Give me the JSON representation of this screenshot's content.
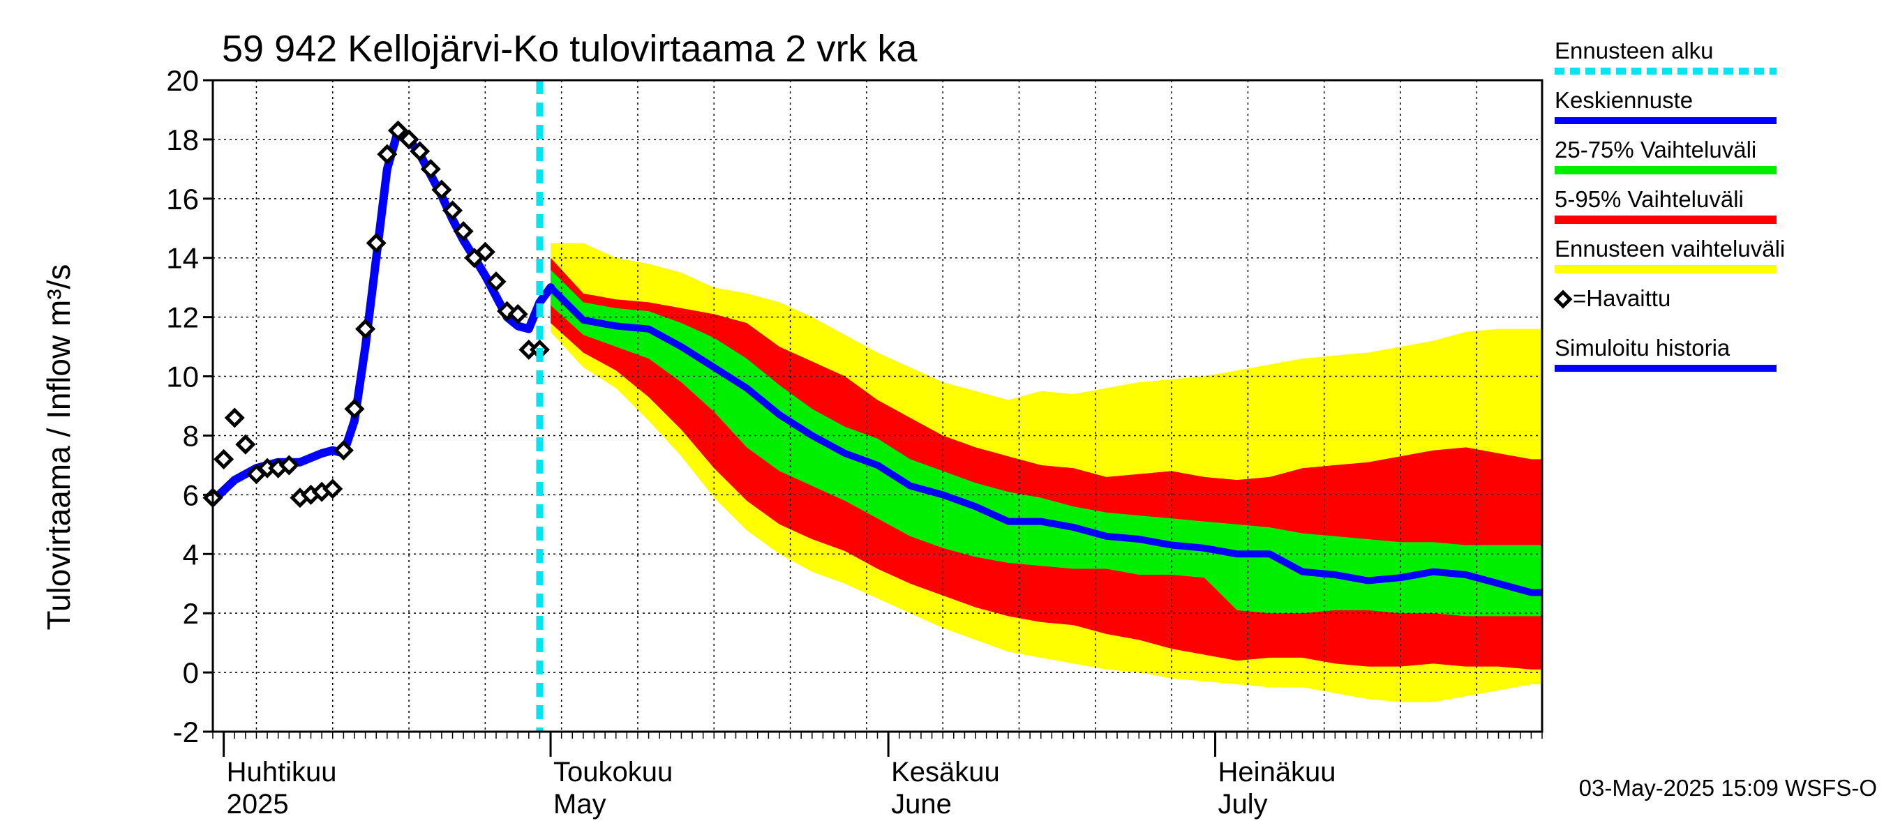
{
  "chart_data": {
    "type": "area",
    "title": "59 942 Kellojärvi-Ko tulovirtaama 2 vrk ka",
    "ylabel": "Tulovirtaama / Inflow   m³/s",
    "ylim": [
      -2,
      20
    ],
    "yticks": [
      -2,
      0,
      2,
      4,
      6,
      8,
      10,
      12,
      14,
      16,
      18,
      20
    ],
    "xlim": [
      "2025-03-31",
      "2025-07-31"
    ],
    "grid": true,
    "months": [
      {
        "top": "Huhtikuu",
        "bottom": "2025",
        "date": "2025-04-01"
      },
      {
        "top": "Toukokuu",
        "bottom": "May",
        "date": "2025-05-01"
      },
      {
        "top": "Kesäkuu",
        "bottom": "June",
        "date": "2025-06-01"
      },
      {
        "top": "Heinäkuu",
        "bottom": "July",
        "date": "2025-07-01"
      }
    ],
    "forecast_start": "2025-04-30",
    "colors": {
      "forecast_start": "#00e5ee",
      "median": "#0000ff",
      "iqr": "#00ee00",
      "p5_95": "#ff0000",
      "full_range": "#ffff00",
      "history": "#0000ff",
      "observed": "#000000"
    },
    "legend": [
      {
        "label": "Ennusteen alku",
        "key": "forecast_start",
        "style": "dashed"
      },
      {
        "label": "Keskiennuste",
        "key": "median",
        "style": "line"
      },
      {
        "label": "25-75% Vaihteluväli",
        "key": "iqr",
        "style": "band"
      },
      {
        "label": "5-95% Vaihteluväli",
        "key": "p5_95",
        "style": "band"
      },
      {
        "label": "Ennusteen vaihteluväli",
        "key": "full_range",
        "style": "band"
      },
      {
        "label": "=Havaittu",
        "key": "observed",
        "style": "marker"
      },
      {
        "label": "Simuloitu historia",
        "key": "history",
        "style": "line"
      }
    ],
    "observed": [
      [
        "2025-03-31",
        5.9
      ],
      [
        "2025-04-01",
        7.2
      ],
      [
        "2025-04-02",
        8.6
      ],
      [
        "2025-04-03",
        7.7
      ],
      [
        "2025-04-04",
        6.7
      ],
      [
        "2025-04-05",
        6.9
      ],
      [
        "2025-04-06",
        6.9
      ],
      [
        "2025-04-07",
        7.0
      ],
      [
        "2025-04-08",
        5.9
      ],
      [
        "2025-04-09",
        6.0
      ],
      [
        "2025-04-10",
        6.1
      ],
      [
        "2025-04-11",
        6.2
      ],
      [
        "2025-04-12",
        7.5
      ],
      [
        "2025-04-13",
        8.9
      ],
      [
        "2025-04-14",
        11.6
      ],
      [
        "2025-04-15",
        14.5
      ],
      [
        "2025-04-16",
        17.5
      ],
      [
        "2025-04-17",
        18.3
      ],
      [
        "2025-04-18",
        18.0
      ],
      [
        "2025-04-19",
        17.6
      ],
      [
        "2025-04-20",
        17.0
      ],
      [
        "2025-04-21",
        16.3
      ],
      [
        "2025-04-22",
        15.6
      ],
      [
        "2025-04-23",
        14.9
      ],
      [
        "2025-04-24",
        14.0
      ],
      [
        "2025-04-25",
        14.2
      ],
      [
        "2025-04-26",
        13.2
      ],
      [
        "2025-04-27",
        12.2
      ],
      [
        "2025-04-28",
        12.1
      ],
      [
        "2025-04-29",
        10.9
      ],
      [
        "2025-04-30",
        10.9
      ]
    ],
    "history": [
      [
        "2025-03-31",
        5.8
      ],
      [
        "2025-04-02",
        6.5
      ],
      [
        "2025-04-04",
        6.9
      ],
      [
        "2025-04-06",
        7.1
      ],
      [
        "2025-04-08",
        7.1
      ],
      [
        "2025-04-10",
        7.4
      ],
      [
        "2025-04-11",
        7.5
      ],
      [
        "2025-04-12",
        7.4
      ],
      [
        "2025-04-13",
        8.5
      ],
      [
        "2025-04-14",
        11.0
      ],
      [
        "2025-04-15",
        14.0
      ],
      [
        "2025-04-16",
        17.0
      ],
      [
        "2025-04-17",
        18.3
      ],
      [
        "2025-04-18",
        18.0
      ],
      [
        "2025-04-19",
        17.5
      ],
      [
        "2025-04-20",
        16.8
      ],
      [
        "2025-04-21",
        16.1
      ],
      [
        "2025-04-22",
        15.3
      ],
      [
        "2025-04-23",
        14.6
      ],
      [
        "2025-04-24",
        14.0
      ],
      [
        "2025-04-25",
        13.4
      ],
      [
        "2025-04-26",
        12.7
      ],
      [
        "2025-04-27",
        12.0
      ],
      [
        "2025-04-28",
        11.7
      ],
      [
        "2025-04-29",
        11.6
      ],
      [
        "2025-04-30",
        12.5
      ],
      [
        "2025-05-01",
        13.0
      ]
    ],
    "forecast_dates": [
      "2025-05-01",
      "2025-05-04",
      "2025-05-07",
      "2025-05-10",
      "2025-05-13",
      "2025-05-16",
      "2025-05-19",
      "2025-05-22",
      "2025-05-25",
      "2025-05-28",
      "2025-05-31",
      "2025-06-03",
      "2025-06-06",
      "2025-06-09",
      "2025-06-12",
      "2025-06-15",
      "2025-06-18",
      "2025-06-21",
      "2025-06-24",
      "2025-06-27",
      "2025-06-30",
      "2025-07-03",
      "2025-07-06",
      "2025-07-09",
      "2025-07-12",
      "2025-07-15",
      "2025-07-18",
      "2025-07-21",
      "2025-07-24",
      "2025-07-27",
      "2025-07-30",
      "2025-07-31"
    ],
    "median": [
      13.0,
      11.9,
      11.7,
      11.6,
      11.0,
      10.3,
      9.6,
      8.7,
      8.0,
      7.4,
      7.0,
      6.3,
      6.0,
      5.6,
      5.1,
      5.1,
      4.9,
      4.6,
      4.5,
      4.3,
      4.2,
      4.0,
      4.0,
      3.4,
      3.3,
      3.1,
      3.2,
      3.4,
      3.3,
      3.0,
      2.7,
      2.7
    ],
    "p25": [
      12.4,
      11.4,
      11.0,
      10.6,
      9.8,
      8.8,
      7.6,
      6.8,
      6.3,
      5.8,
      5.2,
      4.6,
      4.2,
      3.9,
      3.7,
      3.6,
      3.5,
      3.5,
      3.3,
      3.3,
      3.2,
      2.1,
      2.0,
      2.0,
      2.1,
      2.1,
      2.0,
      2.0,
      1.9,
      1.9,
      1.9,
      1.9
    ],
    "p75": [
      13.6,
      12.5,
      12.3,
      12.2,
      11.8,
      11.3,
      10.6,
      9.7,
      8.9,
      8.3,
      7.9,
      7.2,
      6.8,
      6.4,
      6.1,
      5.9,
      5.6,
      5.4,
      5.3,
      5.2,
      5.1,
      5.0,
      4.9,
      4.7,
      4.6,
      4.5,
      4.4,
      4.4,
      4.3,
      4.3,
      4.3,
      4.3
    ],
    "p5": [
      11.8,
      10.8,
      10.2,
      9.3,
      8.2,
      6.9,
      5.8,
      5.0,
      4.5,
      4.1,
      3.5,
      3.0,
      2.6,
      2.2,
      1.9,
      1.7,
      1.6,
      1.3,
      1.1,
      0.8,
      0.6,
      0.4,
      0.5,
      0.5,
      0.3,
      0.2,
      0.2,
      0.3,
      0.2,
      0.2,
      0.1,
      0.1
    ],
    "p95": [
      14.0,
      12.8,
      12.6,
      12.5,
      12.3,
      12.1,
      11.8,
      11.0,
      10.5,
      10.0,
      9.2,
      8.6,
      8.0,
      7.6,
      7.3,
      7.0,
      6.9,
      6.6,
      6.7,
      6.8,
      6.6,
      6.5,
      6.6,
      6.9,
      7.0,
      7.1,
      7.3,
      7.5,
      7.6,
      7.4,
      7.2,
      7.2
    ],
    "min": [
      11.5,
      10.3,
      9.6,
      8.5,
      7.3,
      5.9,
      4.8,
      4.0,
      3.4,
      3.0,
      2.5,
      2.0,
      1.5,
      1.1,
      0.7,
      0.5,
      0.3,
      0.1,
      0.0,
      -0.2,
      -0.3,
      -0.4,
      -0.5,
      -0.5,
      -0.7,
      -0.9,
      -1.0,
      -1.0,
      -0.8,
      -0.6,
      -0.4,
      -0.4
    ],
    "max": [
      14.5,
      14.5,
      14.0,
      13.8,
      13.5,
      13.0,
      12.8,
      12.5,
      12.0,
      11.4,
      10.8,
      10.3,
      9.8,
      9.5,
      9.2,
      9.5,
      9.4,
      9.6,
      9.8,
      9.9,
      10.0,
      10.2,
      10.4,
      10.6,
      10.7,
      10.8,
      11.0,
      11.2,
      11.5,
      11.6,
      11.6,
      11.6
    ]
  },
  "footer": "03-May-2025 15:09 WSFS-O"
}
